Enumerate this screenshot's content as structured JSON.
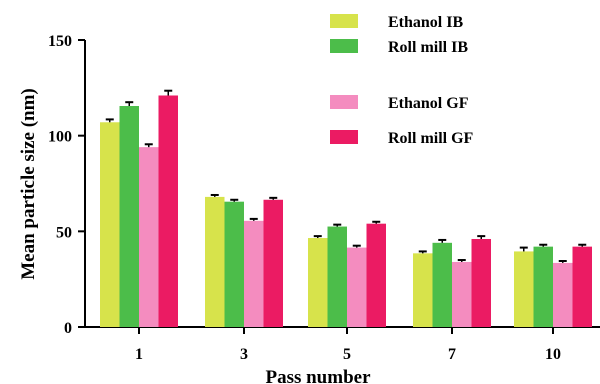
{
  "chart_data": {
    "type": "bar",
    "xlabel": "Pass number",
    "ylabel": "Mean particle size (nm)",
    "categories": [
      "1",
      "3",
      "5",
      "7",
      "10"
    ],
    "ylim": [
      0,
      150
    ],
    "yticks": [
      0,
      50,
      100,
      150
    ],
    "grid": false,
    "legend_position": "top-right",
    "series": [
      {
        "name": "Ethanol IB",
        "color": "#d7e34b",
        "values": [
          107,
          68,
          46.5,
          38.5,
          39.5
        ],
        "errors": [
          1.5,
          1,
          1,
          1,
          2
        ]
      },
      {
        "name": "Roll mill IB",
        "color": "#4cbd4a",
        "values": [
          115.5,
          65.5,
          52.5,
          44,
          42
        ],
        "errors": [
          2,
          1,
          1,
          1.5,
          1
        ]
      },
      {
        "name": "Ethanol GF",
        "color": "#f48cbf",
        "values": [
          94,
          55.5,
          41.5,
          34,
          33.5
        ],
        "errors": [
          1.5,
          1,
          1,
          1,
          1
        ]
      },
      {
        "name": "Roll mill GF",
        "color": "#eb1b63",
        "values": [
          121,
          66.5,
          54,
          46,
          42
        ],
        "errors": [
          2.5,
          1,
          1,
          1.5,
          1
        ]
      }
    ]
  }
}
